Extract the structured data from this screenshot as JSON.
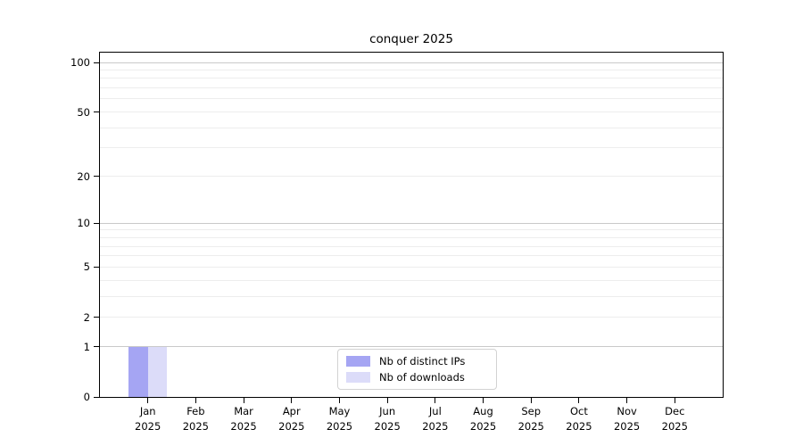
{
  "title": "conquer 2025",
  "chart_data": {
    "type": "bar",
    "title": "conquer 2025",
    "x": {
      "months": [
        "Jan",
        "Feb",
        "Mar",
        "Apr",
        "May",
        "Jun",
        "Jul",
        "Aug",
        "Sep",
        "Oct",
        "Nov",
        "Dec"
      ],
      "year": "2025"
    },
    "series": [
      {
        "name": "Nb of distinct IPs",
        "color": "#a5a5f3",
        "values": [
          1,
          0,
          0,
          0,
          0,
          0,
          0,
          0,
          0,
          0,
          0,
          0
        ]
      },
      {
        "name": "Nb of downloads",
        "color": "#dcdcf9",
        "values": [
          1,
          0,
          0,
          0,
          0,
          0,
          0,
          0,
          0,
          0,
          0,
          0
        ]
      }
    ],
    "yscale": "log1p",
    "ylim": [
      0,
      115
    ],
    "yticks": [
      0,
      1,
      2,
      5,
      10,
      20,
      50,
      100
    ],
    "grid": {
      "major_values": [
        1,
        10,
        100
      ],
      "minor_values": [
        2,
        3,
        4,
        5,
        6,
        7,
        8,
        9,
        20,
        30,
        40,
        50,
        60,
        70,
        80,
        90
      ],
      "major_color": "#c9c9c9",
      "minor_color": "#ededed"
    },
    "legend": {
      "position": "lower center",
      "entries": [
        "Nb of distinct IPs",
        "Nb of downloads"
      ]
    },
    "colors": {
      "spine": "#000000",
      "background": "#ffffff",
      "legend_border": "#d2d2d2"
    }
  }
}
